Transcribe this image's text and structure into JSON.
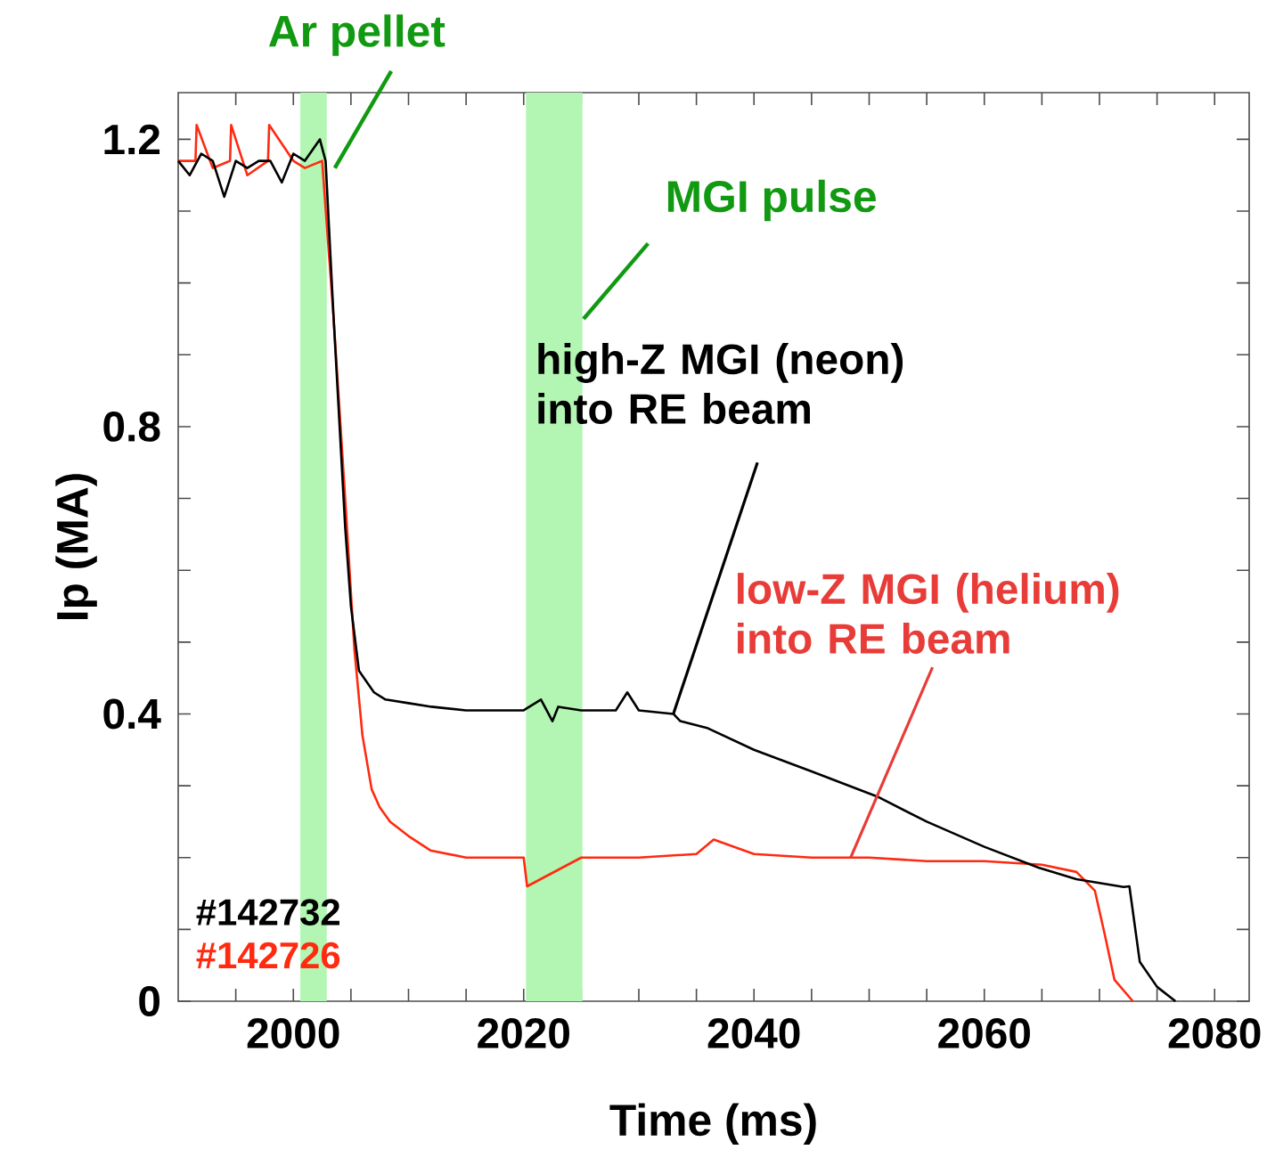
{
  "chart_data": {
    "type": "line",
    "xlabel": "Time (ms)",
    "ylabel": "Ip (MA)",
    "xlim": [
      1990,
      2083
    ],
    "ylim": [
      0,
      1.265
    ],
    "xticks": [
      {
        "value": 1995,
        "label": null
      },
      2000,
      {
        "value": 2005,
        "label": null
      },
      {
        "value": 2010,
        "label": null
      },
      {
        "value": 2015,
        "label": null
      },
      2020,
      {
        "value": 2025,
        "label": null
      },
      {
        "value": 2030,
        "label": null
      },
      {
        "value": 2035,
        "label": null
      },
      2040,
      {
        "value": 2045,
        "label": null
      },
      {
        "value": 2050,
        "label": null
      },
      {
        "value": 2055,
        "label": null
      },
      2060,
      {
        "value": 2065,
        "label": null
      },
      {
        "value": 2070,
        "label": null
      },
      {
        "value": 2075,
        "label": null
      },
      2080
    ],
    "yticks": [
      0,
      {
        "value": 0.1,
        "label": null
      },
      {
        "value": 0.2,
        "label": null
      },
      {
        "value": 0.3,
        "label": null
      },
      0.4,
      {
        "value": 0.5,
        "label": null
      },
      {
        "value": 0.6,
        "label": null
      },
      {
        "value": 0.7,
        "label": null
      },
      0.8,
      {
        "value": 0.9,
        "label": null
      },
      {
        "value": 1.0,
        "label": null
      },
      {
        "value": 1.1,
        "label": null
      },
      1.2
    ],
    "bands": [
      {
        "axis": "x",
        "from": 2000.6,
        "to": 2002.9,
        "label": "Ar pellet",
        "color": "#b3f5b3"
      },
      {
        "axis": "x",
        "from": 2020.2,
        "to": 2025.1,
        "label": "MGI pulse",
        "color": "#b3f5b3"
      }
    ],
    "series": [
      {
        "name": "#142726",
        "color": "#ff2a10",
        "x": [
          1990,
          1991.5,
          1991.6,
          1993,
          1994.5,
          1994.6,
          1996,
          1997.8,
          1997.9,
          2000,
          2001,
          2002.5,
          2003.5,
          2004.5,
          2005.3,
          2006,
          2006.8,
          2007.5,
          2008.4,
          2010,
          2011.9,
          2015,
          2020,
          2020.3,
          2025,
          2030,
          2035,
          2036.5,
          2040,
          2045,
          2050,
          2055,
          2060,
          2065,
          2068,
          2069.6,
          2070.5,
          2071.3,
          2072.9
        ],
        "values": [
          1.17,
          1.17,
          1.22,
          1.16,
          1.17,
          1.22,
          1.15,
          1.17,
          1.22,
          1.17,
          1.16,
          1.17,
          0.95,
          0.7,
          0.49,
          0.37,
          0.295,
          0.27,
          0.25,
          0.23,
          0.21,
          0.2,
          0.2,
          0.16,
          0.2,
          0.2,
          0.205,
          0.225,
          0.205,
          0.2,
          0.2,
          0.195,
          0.195,
          0.19,
          0.18,
          0.154,
          0.09,
          0.03,
          0
        ]
      },
      {
        "name": "#142732",
        "color": "#000000",
        "x": [
          1990,
          1991,
          1992,
          1993,
          1994,
          1995,
          1996,
          1997,
          1998,
          1999,
          2000,
          2001,
          2002.3,
          2002.8,
          2003.5,
          2004.5,
          2005,
          2005.7,
          2007,
          2008,
          2010,
          2012,
          2015,
          2018,
          2020,
          2021.5,
          2022.5,
          2023,
          2025,
          2028,
          2029,
          2030,
          2033,
          2033.6,
          2036,
          2040,
          2045,
          2050.7,
          2055,
          2060,
          2064.7,
          2068,
          2072.1,
          2072.6,
          2073.5,
          2075,
          2076.6
        ],
        "values": [
          1.17,
          1.15,
          1.18,
          1.17,
          1.12,
          1.17,
          1.16,
          1.17,
          1.17,
          1.14,
          1.18,
          1.17,
          1.2,
          1.17,
          0.95,
          0.66,
          0.55,
          0.46,
          0.43,
          0.42,
          0.415,
          0.41,
          0.405,
          0.405,
          0.405,
          0.42,
          0.39,
          0.41,
          0.405,
          0.405,
          0.43,
          0.405,
          0.4,
          0.39,
          0.38,
          0.35,
          0.32,
          0.285,
          0.25,
          0.215,
          0.186,
          0.17,
          0.159,
          0.16,
          0.055,
          0.02,
          0
        ]
      }
    ],
    "annotations": [
      {
        "text": "high-Z MGI (neon) into RE beam",
        "x": 2033,
        "y": 0.4
      },
      {
        "text": "low-Z MGI (helium) into RE beam",
        "x": 2048.4,
        "y": 0.2
      }
    ]
  }
}
